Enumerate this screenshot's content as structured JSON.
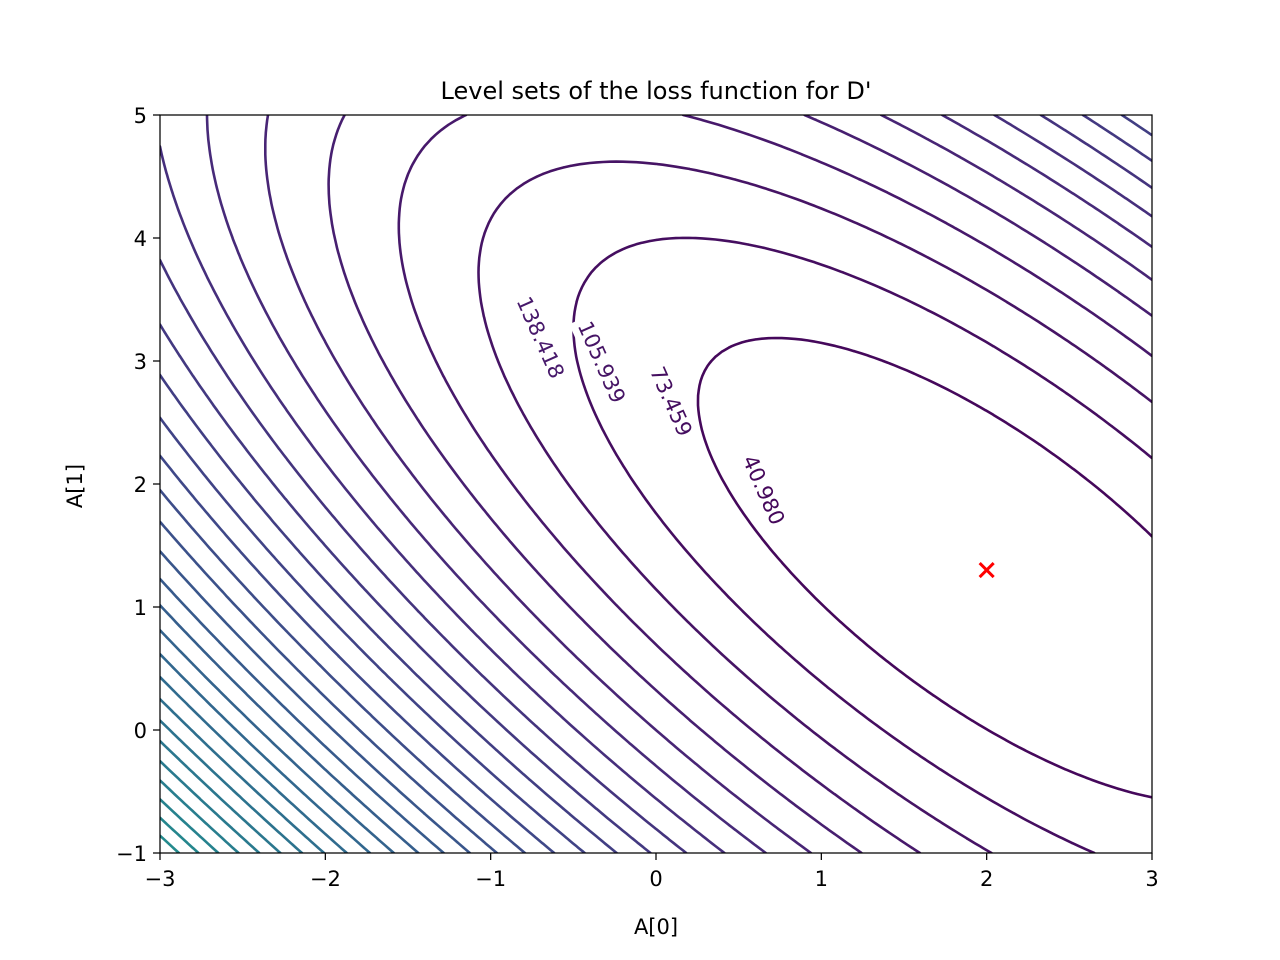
{
  "chart_data": {
    "type": "contour",
    "title": "Level sets of the loss function for D'",
    "xlabel": "A[0]",
    "ylabel": "A[1]",
    "xlim": [
      -3,
      3
    ],
    "ylim": [
      -1,
      5
    ],
    "xticks": [
      -3,
      -2,
      -1,
      0,
      1,
      2,
      3
    ],
    "yticks": [
      -1,
      0,
      1,
      2,
      3,
      4,
      5
    ],
    "xtick_labels": [
      "−3",
      "−2",
      "−1",
      "0",
      "1",
      "2",
      "3"
    ],
    "ytick_labels": [
      "−1",
      "0",
      "1",
      "2",
      "3",
      "4",
      "5"
    ],
    "colormap": "viridis",
    "grid": false,
    "level_step": 32.479,
    "max_level": 2000,
    "labeled_levels": [
      {
        "value": 40.98,
        "text": "40.980",
        "at": [
          0.65,
          1.95
        ]
      },
      {
        "value": 73.459,
        "text": "73.459",
        "at": [
          0.09,
          2.67
        ]
      },
      {
        "value": 105.939,
        "text": "105.939",
        "at": [
          -0.33,
          2.99
        ]
      },
      {
        "value": 138.418,
        "text": "138.418",
        "at": [
          -0.7,
          3.19
        ]
      }
    ],
    "minimum_marker": {
      "x": 2,
      "y": 1.3,
      "symbol": "x",
      "color": "#ff0000"
    }
  }
}
